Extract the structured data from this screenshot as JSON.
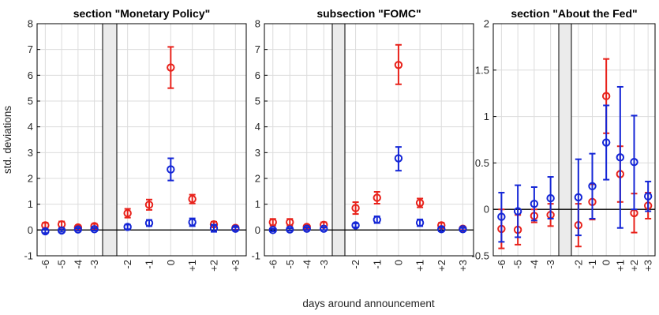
{
  "chart_data": {
    "type": "scatter",
    "ylabel": "std. deviations",
    "xlabel": "days around announcement",
    "colors": {
      "red": "#e8221b",
      "blue": "#1426d6",
      "gap": "#ebebeb",
      "grid": "#dcdcdc"
    },
    "panels": [
      {
        "title": "section \"Monetary Policy\"",
        "ylim": [
          -1,
          8
        ],
        "yticks": [
          "-1",
          "0",
          "1",
          "2",
          "3",
          "4",
          "5",
          "6",
          "7",
          "8"
        ],
        "x_labels": [
          "-6",
          "-5",
          "-4",
          "-3",
          "-2",
          "-1",
          "0",
          "+1",
          "+2",
          "+3"
        ],
        "series": [
          {
            "color": "red",
            "values": [
              0.18,
              0.22,
              0.1,
              0.15,
              0.65,
              0.98,
              6.3,
              1.2,
              0.22,
              0.08
            ],
            "lower": [
              0.08,
              0.1,
              0.03,
              0.06,
              0.48,
              0.78,
              5.5,
              1.03,
              0.12,
              0.01
            ],
            "upper": [
              0.28,
              0.33,
              0.17,
              0.24,
              0.82,
              1.18,
              7.1,
              1.37,
              0.32,
              0.15
            ]
          },
          {
            "color": "blue",
            "values": [
              -0.05,
              -0.02,
              0.02,
              0.03,
              0.12,
              0.27,
              2.35,
              0.3,
              0.07,
              0.05
            ],
            "lower": [
              -0.12,
              -0.07,
              -0.03,
              -0.02,
              0.03,
              0.15,
              1.92,
              0.15,
              -0.07,
              -0.01
            ],
            "upper": [
              0.02,
              0.03,
              0.07,
              0.08,
              0.21,
              0.39,
              2.78,
              0.45,
              0.21,
              0.11
            ]
          }
        ]
      },
      {
        "title": "subsection \"FOMC\"",
        "ylim": [
          -1,
          8
        ],
        "yticks": [
          "-1",
          "0",
          "1",
          "2",
          "3",
          "4",
          "5",
          "6",
          "7",
          "8"
        ],
        "x_labels": [
          "-6",
          "-5",
          "-4",
          "-3",
          "-2",
          "-1",
          "0",
          "+1",
          "+2",
          "+3"
        ],
        "series": [
          {
            "color": "red",
            "values": [
              0.3,
              0.3,
              0.12,
              0.2,
              0.85,
              1.25,
              6.4,
              1.05,
              0.18,
              0.05
            ],
            "lower": [
              0.17,
              0.17,
              0.05,
              0.1,
              0.62,
              1.02,
              5.65,
              0.88,
              0.08,
              0.0
            ],
            "upper": [
              0.43,
              0.43,
              0.19,
              0.3,
              1.08,
              1.48,
              7.18,
              1.22,
              0.28,
              0.1
            ]
          },
          {
            "color": "blue",
            "values": [
              0.0,
              0.02,
              0.05,
              0.05,
              0.18,
              0.4,
              2.78,
              0.28,
              0.03,
              0.03
            ],
            "lower": [
              -0.05,
              -0.03,
              0.0,
              0.0,
              0.1,
              0.27,
              2.3,
              0.15,
              -0.05,
              -0.02
            ],
            "upper": [
              0.05,
              0.07,
              0.1,
              0.1,
              0.26,
              0.53,
              3.22,
              0.41,
              0.11,
              0.08
            ]
          }
        ]
      },
      {
        "title": "section \"About the Fed\"",
        "ylim": [
          -0.5,
          2
        ],
        "yticks": [
          "-0.5",
          "0",
          "0.5",
          "1",
          "1.5",
          "2"
        ],
        "x_labels": [
          "-6",
          "-5",
          "-4",
          "-3",
          "-2",
          "-1",
          "0",
          "+1",
          "+2",
          "+3"
        ],
        "series": [
          {
            "color": "red",
            "values": [
              -0.21,
              -0.22,
              -0.07,
              -0.06,
              -0.17,
              0.08,
              1.22,
              0.38,
              -0.04,
              0.04
            ],
            "lower": [
              -0.42,
              -0.38,
              -0.14,
              -0.18,
              -0.4,
              -0.11,
              0.82,
              0.08,
              -0.25,
              -0.1
            ],
            "upper": [
              0.0,
              -0.06,
              0.0,
              0.06,
              0.06,
              0.27,
              1.62,
              0.68,
              0.17,
              0.18
            ]
          },
          {
            "color": "blue",
            "values": [
              -0.08,
              -0.02,
              0.06,
              0.12,
              0.13,
              0.25,
              0.72,
              0.56,
              0.51,
              0.14
            ],
            "lower": [
              -0.35,
              -0.3,
              -0.12,
              -0.1,
              -0.28,
              -0.1,
              0.32,
              -0.2,
              0.0,
              -0.02
            ],
            "upper": [
              0.18,
              0.26,
              0.24,
              0.35,
              0.54,
              0.6,
              1.12,
              1.32,
              1.01,
              0.3
            ]
          }
        ]
      }
    ]
  }
}
